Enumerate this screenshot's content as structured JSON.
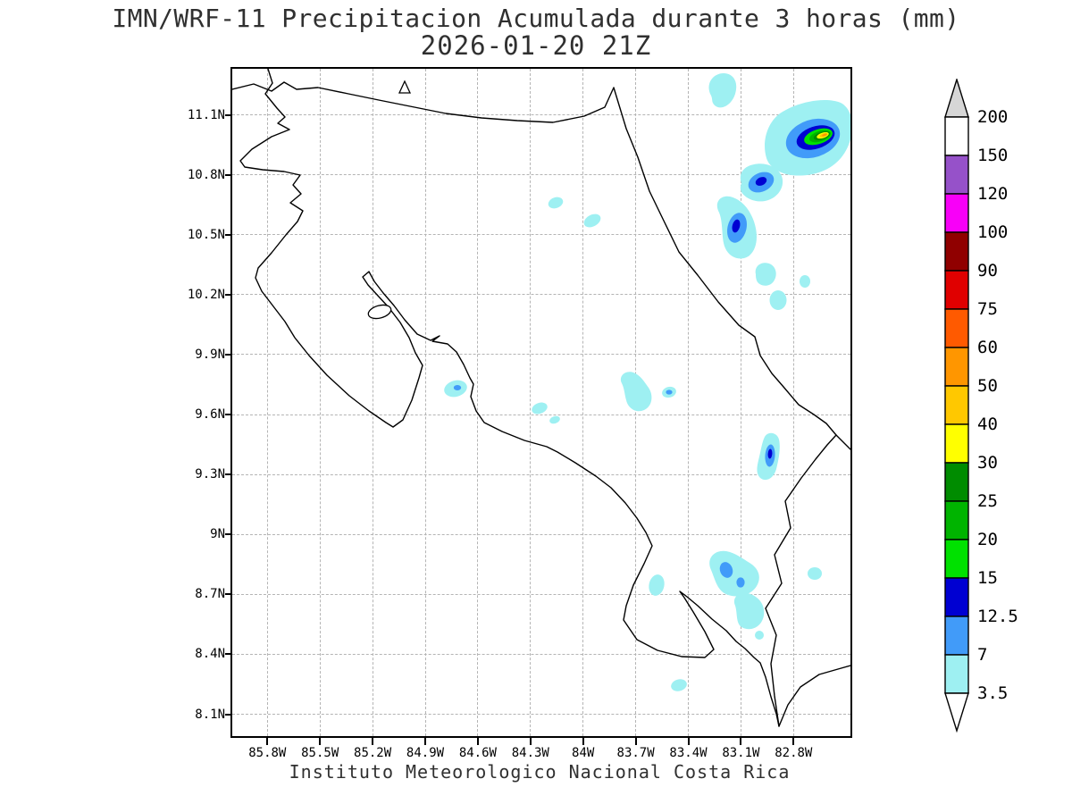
{
  "title": {
    "line1": "IMN/WRF-11 Precipitacion Acumulada durante 3 horas (mm)",
    "line2": "2026-01-20 21Z"
  },
  "footer": "Instituto Meteorologico Nacional Costa Rica",
  "axes": {
    "lat_ticks": [
      "11.1N",
      "10.8N",
      "10.5N",
      "10.2N",
      "9.9N",
      "9.6N",
      "9.3N",
      "9N",
      "8.7N",
      "8.4N",
      "8.1N"
    ],
    "lon_ticks": [
      "85.8W",
      "85.5W",
      "85.2W",
      "84.9W",
      "84.6W",
      "84.3W",
      "84W",
      "83.7W",
      "83.4W",
      "83.1W",
      "82.8W"
    ]
  },
  "colorbar": {
    "levels": [
      "200",
      "150",
      "120",
      "100",
      "90",
      "75",
      "60",
      "50",
      "40",
      "30",
      "25",
      "20",
      "15",
      "12.5",
      "7",
      "3.5"
    ],
    "box_colors_top_to_bottom": [
      "#ffffff",
      "#9651c9",
      "#f800f8",
      "#900000",
      "#e00000",
      "#ff5a00",
      "#ff9600",
      "#ffc800",
      "#ffff00",
      "#008c00",
      "#00b400",
      "#00e100",
      "#0000d2",
      "#419bf9",
      "#9ef0f2"
    ],
    "above_max_color": "#d6d6d6",
    "below_min_color": "#ffffff"
  },
  "map_shading": {
    "units": "mm",
    "levels": {
      "3.5": "#9ef0f2",
      "7": "#419bf9",
      "12.5": "#0000d2",
      "15": "#00e100",
      "20": "#00b400",
      "25": "#008c00",
      "30": "#ffff00",
      "40": "#ffc800",
      "50": "#ff9600"
    }
  }
}
